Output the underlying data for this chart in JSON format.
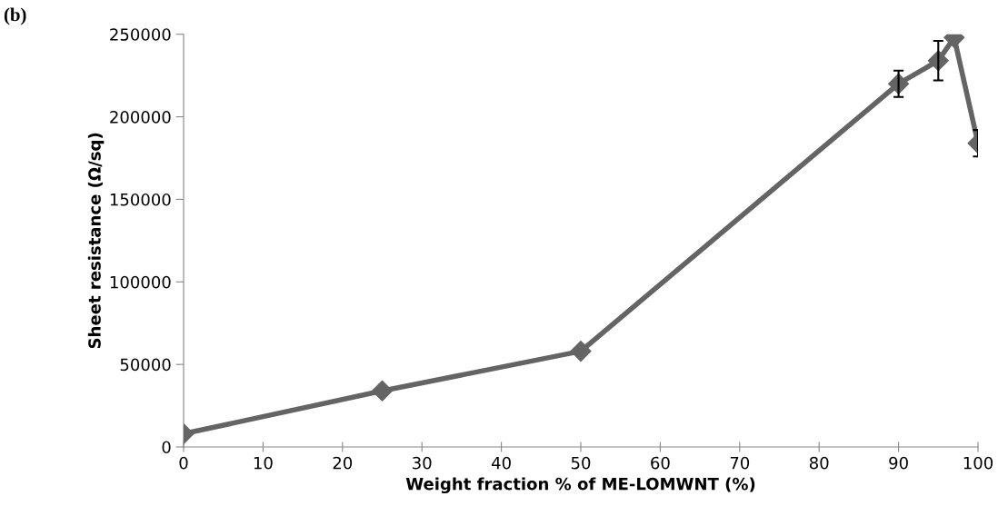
{
  "chart_data": {
    "type": "line",
    "xlabel": "Weight fraction % of ME-LOMWNT (%)",
    "ylabel": "Sheet resistance (Ω/sq)",
    "annotations": [
      "(b)"
    ],
    "x": [
      0,
      25,
      50,
      90,
      95,
      97,
      100
    ],
    "series": [
      {
        "color": "#646464",
        "values": [
          8000,
          34000,
          58000,
          220000,
          234000,
          248000,
          184000
        ],
        "errors": [
          null,
          null,
          null,
          8000,
          12000,
          null,
          8000
        ]
      }
    ],
    "xlim": [
      0,
      100
    ],
    "xticks": [
      0,
      10,
      20,
      30,
      40,
      50,
      60,
      70,
      80,
      90,
      100
    ],
    "ylim": [
      0,
      250000
    ],
    "yticks": [
      0,
      50000,
      100000,
      150000,
      200000,
      250000
    ],
    "marker": "diamond",
    "line_style": "solid",
    "grid": false,
    "legend": false
  }
}
